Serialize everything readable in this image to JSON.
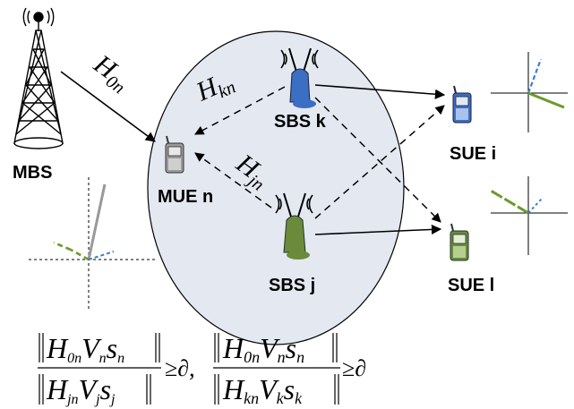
{
  "nodes": {
    "mbs": "MBS",
    "mue": "MUE n",
    "sbs_k": "SBS k",
    "sbs_j": "SBS j",
    "sue_i": "SUE i",
    "sue_l": "SUE l"
  },
  "channels": {
    "h0n": {
      "base": "H",
      "sub": "0n"
    },
    "hkn": {
      "base": "H",
      "sub": "kn"
    },
    "hjn": {
      "base": "H",
      "sub": "jn"
    }
  },
  "formula": {
    "cond1": {
      "num": [
        "H",
        "0n",
        "V",
        "n",
        "s",
        "n"
      ],
      "den": [
        "H",
        "jn",
        "V",
        "j",
        "s",
        "j"
      ],
      "rel": "≥∂,"
    },
    "cond2": {
      "num": [
        "H",
        "0n",
        "V",
        "n",
        "s",
        "n"
      ],
      "den": [
        "H",
        "kn",
        "V",
        "k",
        "s",
        "k"
      ],
      "rel": "≥∂"
    }
  },
  "colors": {
    "cell": "#e3e8f1",
    "sbs_k_body": "#3a6fc4",
    "sbs_j_body": "#6b8b3a",
    "sue_i_body": "#3a6fc4",
    "sue_l_body": "#6b8b3a",
    "mue_body": "#9a9a9a",
    "dash_blue": "#3a7fd0",
    "dash_green": "#6a9a2a",
    "gray_line": "#999999"
  },
  "icons": [
    "tower-icon",
    "phone-icon",
    "antenna-icon"
  ]
}
